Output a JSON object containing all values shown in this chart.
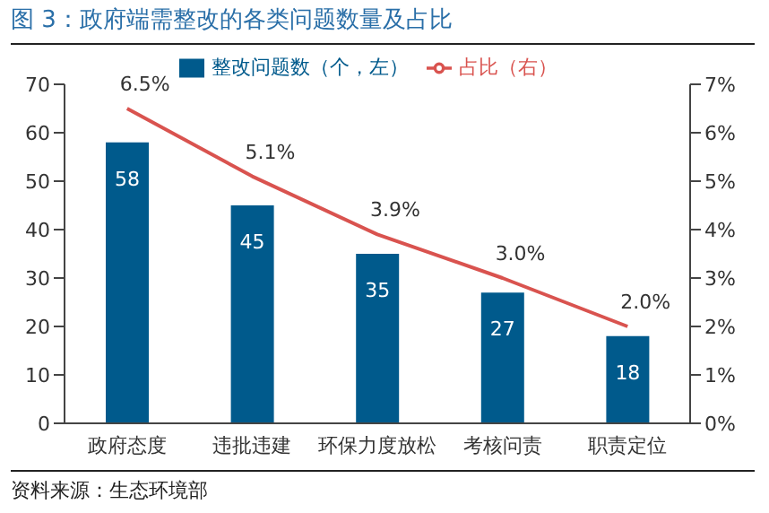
{
  "chart_data": {
    "type": "bar",
    "title": "图 3：政府端需整改的各类问题数量及占比",
    "categories": [
      "政府态度",
      "违批违建",
      "环保力度放松",
      "考核问责",
      "职责定位"
    ],
    "series": [
      {
        "name": "整改问题数（个，左）",
        "color": "#005a8c",
        "values": [
          58,
          45,
          35,
          27,
          18
        ],
        "value_labels": [
          "58",
          "45",
          "35",
          "27",
          "18"
        ]
      },
      {
        "name": "占比（右）",
        "type": "line",
        "axis": "y2",
        "color": "#d9534f",
        "values": [
          6.5,
          5.1,
          3.9,
          3.0,
          2.0
        ],
        "value_labels": [
          "6.5%",
          "5.1%",
          "3.9%",
          "3.0%",
          "2.0%"
        ]
      }
    ],
    "ylim": [
      0,
      70
    ],
    "yticks": [
      0,
      10,
      20,
      30,
      40,
      50,
      60,
      70
    ],
    "y2lim": [
      0,
      7
    ],
    "y2ticks": [
      {
        "value": 0,
        "label": "0%"
      },
      {
        "value": 1,
        "label": "1%"
      },
      {
        "value": 2,
        "label": "2%"
      },
      {
        "value": 3,
        "label": "3%"
      },
      {
        "value": 4,
        "label": "4%"
      },
      {
        "value": 5,
        "label": "5%"
      },
      {
        "value": 6,
        "label": "6%"
      },
      {
        "value": 7,
        "label": "7%"
      }
    ],
    "grid": false,
    "legend": "top",
    "marker": "none",
    "line_style": "solid",
    "annotations": [
      "资料来源：生态环境部"
    ]
  }
}
